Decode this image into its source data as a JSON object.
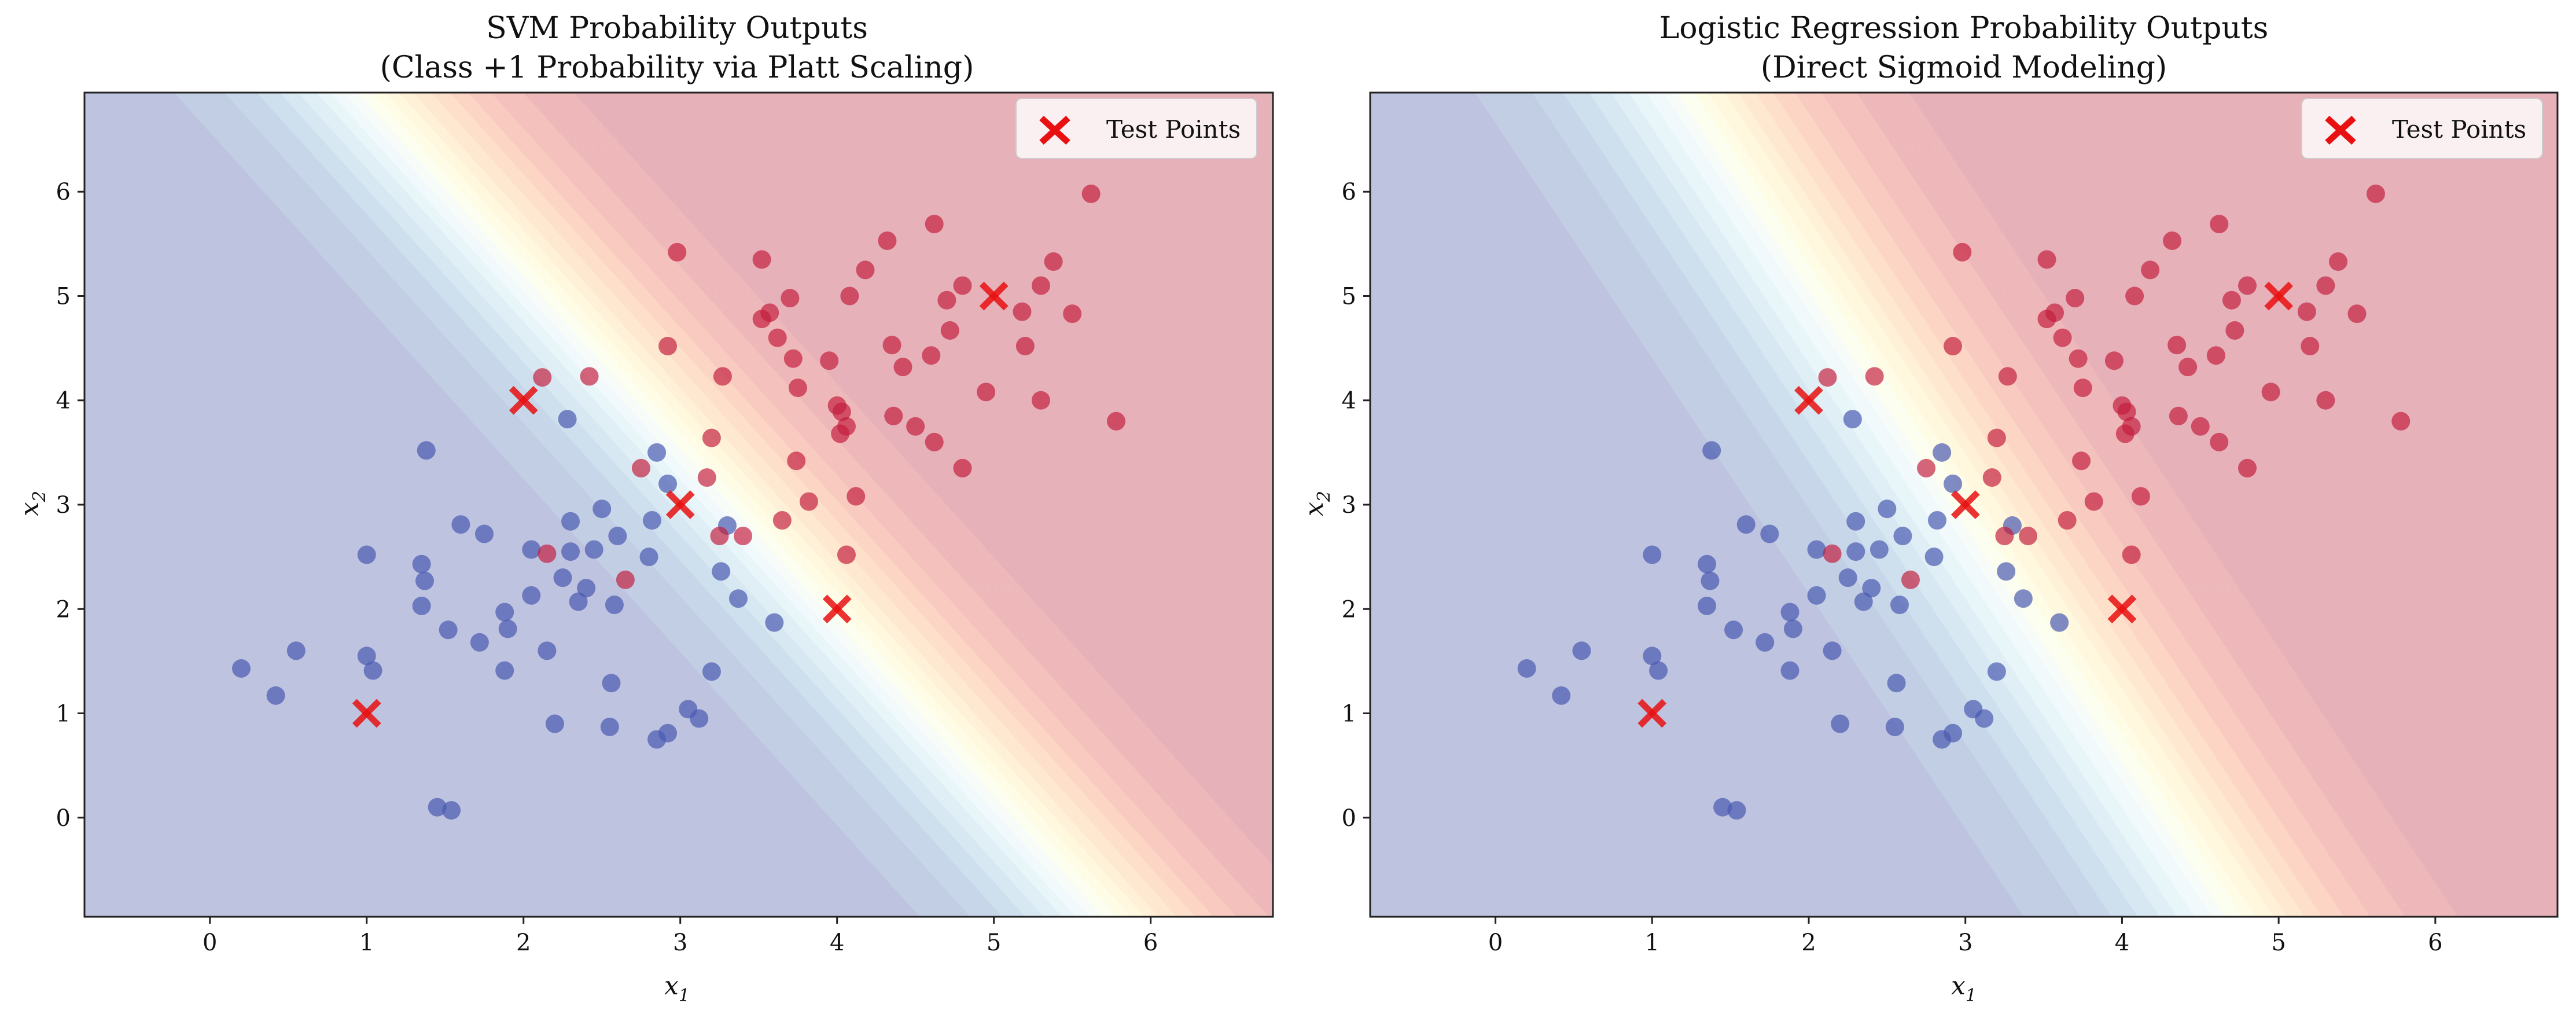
{
  "chart_data": [
    {
      "type": "scatter",
      "title_line1": "SVM Probability Outputs",
      "title_line2": "(Class +1 Probability via Platt Scaling)",
      "xlabel": "x",
      "xlabel_sub": "1",
      "ylabel": "x",
      "ylabel_sub": "2",
      "xlim": [
        -0.8,
        6.78
      ],
      "ylim": [
        -0.95,
        6.95
      ],
      "xticks": [
        "0",
        "1",
        "2",
        "3",
        "4",
        "5",
        "6"
      ],
      "yticks": [
        "0",
        "1",
        "2",
        "3",
        "4",
        "5",
        "6"
      ],
      "decision": {
        "w1": 0.735,
        "w2": 1.0,
        "b": -6.0,
        "scale": 1.55
      },
      "legend": {
        "label": "Test Points",
        "position": "upper right"
      }
    },
    {
      "type": "scatter",
      "title_line1": "Logistic Regression Probability Outputs",
      "title_line2": "(Direct Sigmoid Modeling)",
      "xlabel": "x",
      "xlabel_sub": "1",
      "ylabel": "x",
      "ylabel_sub": "2",
      "xlim": [
        -0.8,
        6.78
      ],
      "ylim": [
        -0.95,
        6.95
      ],
      "xticks": [
        "0",
        "1",
        "2",
        "3",
        "4",
        "5",
        "6"
      ],
      "yticks": [
        "0",
        "1",
        "2",
        "3",
        "4",
        "5",
        "6"
      ],
      "decision": {
        "w1": 1.0,
        "w2": 1.0,
        "b": -6.0,
        "scale": 1.35
      },
      "legend": {
        "label": "Test Points",
        "position": "upper right"
      }
    }
  ],
  "shared_points": {
    "class_neg": [
      [
        0.2,
        1.43
      ],
      [
        0.42,
        1.17
      ],
      [
        0.55,
        1.6
      ],
      [
        1.0,
        2.52
      ],
      [
        1.0,
        1.55
      ],
      [
        1.04,
        1.41
      ],
      [
        1.35,
        2.43
      ],
      [
        1.37,
        2.27
      ],
      [
        1.35,
        2.03
      ],
      [
        1.38,
        3.52
      ],
      [
        1.45,
        0.1
      ],
      [
        1.52,
        1.8
      ],
      [
        1.54,
        0.07
      ],
      [
        1.6,
        2.81
      ],
      [
        1.72,
        1.68
      ],
      [
        1.75,
        2.72
      ],
      [
        1.88,
        1.97
      ],
      [
        1.88,
        1.41
      ],
      [
        1.9,
        1.81
      ],
      [
        2.05,
        2.57
      ],
      [
        2.05,
        2.13
      ],
      [
        2.15,
        1.6
      ],
      [
        2.2,
        0.9
      ],
      [
        2.25,
        2.3
      ],
      [
        2.3,
        2.84
      ],
      [
        2.3,
        2.55
      ],
      [
        2.35,
        2.07
      ],
      [
        2.4,
        2.2
      ],
      [
        2.45,
        2.57
      ],
      [
        2.5,
        2.96
      ],
      [
        2.55,
        0.87
      ],
      [
        2.56,
        1.29
      ],
      [
        2.58,
        2.04
      ],
      [
        2.6,
        2.7
      ],
      [
        2.8,
        2.5
      ],
      [
        2.82,
        2.85
      ],
      [
        2.85,
        0.75
      ],
      [
        2.92,
        0.81
      ],
      [
        3.05,
        1.04
      ],
      [
        3.12,
        0.95
      ],
      [
        3.2,
        1.4
      ],
      [
        3.26,
        2.36
      ],
      [
        3.3,
        2.8
      ],
      [
        3.37,
        2.1
      ],
      [
        3.6,
        1.87
      ],
      [
        2.28,
        3.82
      ],
      [
        2.85,
        3.5
      ],
      [
        2.92,
        3.2
      ]
    ],
    "class_pos": [
      [
        2.12,
        4.22
      ],
      [
        2.15,
        2.53
      ],
      [
        2.42,
        4.23
      ],
      [
        2.65,
        2.28
      ],
      [
        2.75,
        3.35
      ],
      [
        2.92,
        4.52
      ],
      [
        2.98,
        5.42
      ],
      [
        3.17,
        3.26
      ],
      [
        3.2,
        3.64
      ],
      [
        3.25,
        2.7
      ],
      [
        3.27,
        4.23
      ],
      [
        3.4,
        2.7
      ],
      [
        3.52,
        5.35
      ],
      [
        3.52,
        4.78
      ],
      [
        3.57,
        4.84
      ],
      [
        3.62,
        4.6
      ],
      [
        3.65,
        2.85
      ],
      [
        3.7,
        4.98
      ],
      [
        3.72,
        4.4
      ],
      [
        3.74,
        3.42
      ],
      [
        3.75,
        4.12
      ],
      [
        3.82,
        3.03
      ],
      [
        3.95,
        4.38
      ],
      [
        4.0,
        3.95
      ],
      [
        4.02,
        3.68
      ],
      [
        4.03,
        3.89
      ],
      [
        4.06,
        3.75
      ],
      [
        4.06,
        2.52
      ],
      [
        4.08,
        5.0
      ],
      [
        4.12,
        3.08
      ],
      [
        4.18,
        5.25
      ],
      [
        4.32,
        5.53
      ],
      [
        4.35,
        4.53
      ],
      [
        4.36,
        3.85
      ],
      [
        4.42,
        4.32
      ],
      [
        4.5,
        3.75
      ],
      [
        4.6,
        4.43
      ],
      [
        4.62,
        5.69
      ],
      [
        4.62,
        3.6
      ],
      [
        4.7,
        4.96
      ],
      [
        4.72,
        4.67
      ],
      [
        4.8,
        5.1
      ],
      [
        4.8,
        3.35
      ],
      [
        4.95,
        4.08
      ],
      [
        5.18,
        4.85
      ],
      [
        5.2,
        4.52
      ],
      [
        5.3,
        4.0
      ],
      [
        5.3,
        5.1
      ],
      [
        5.38,
        5.33
      ],
      [
        5.5,
        4.83
      ],
      [
        5.62,
        5.98
      ],
      [
        5.78,
        3.8
      ]
    ],
    "test_points": [
      [
        1,
        1
      ],
      [
        2,
        4
      ],
      [
        3,
        3
      ],
      [
        4,
        2
      ],
      [
        5,
        5
      ]
    ]
  },
  "colors": {
    "class_neg": "#4a5ab0",
    "class_pos": "#c21c3c",
    "test_marker": "#e81010",
    "spine": "#222222"
  }
}
